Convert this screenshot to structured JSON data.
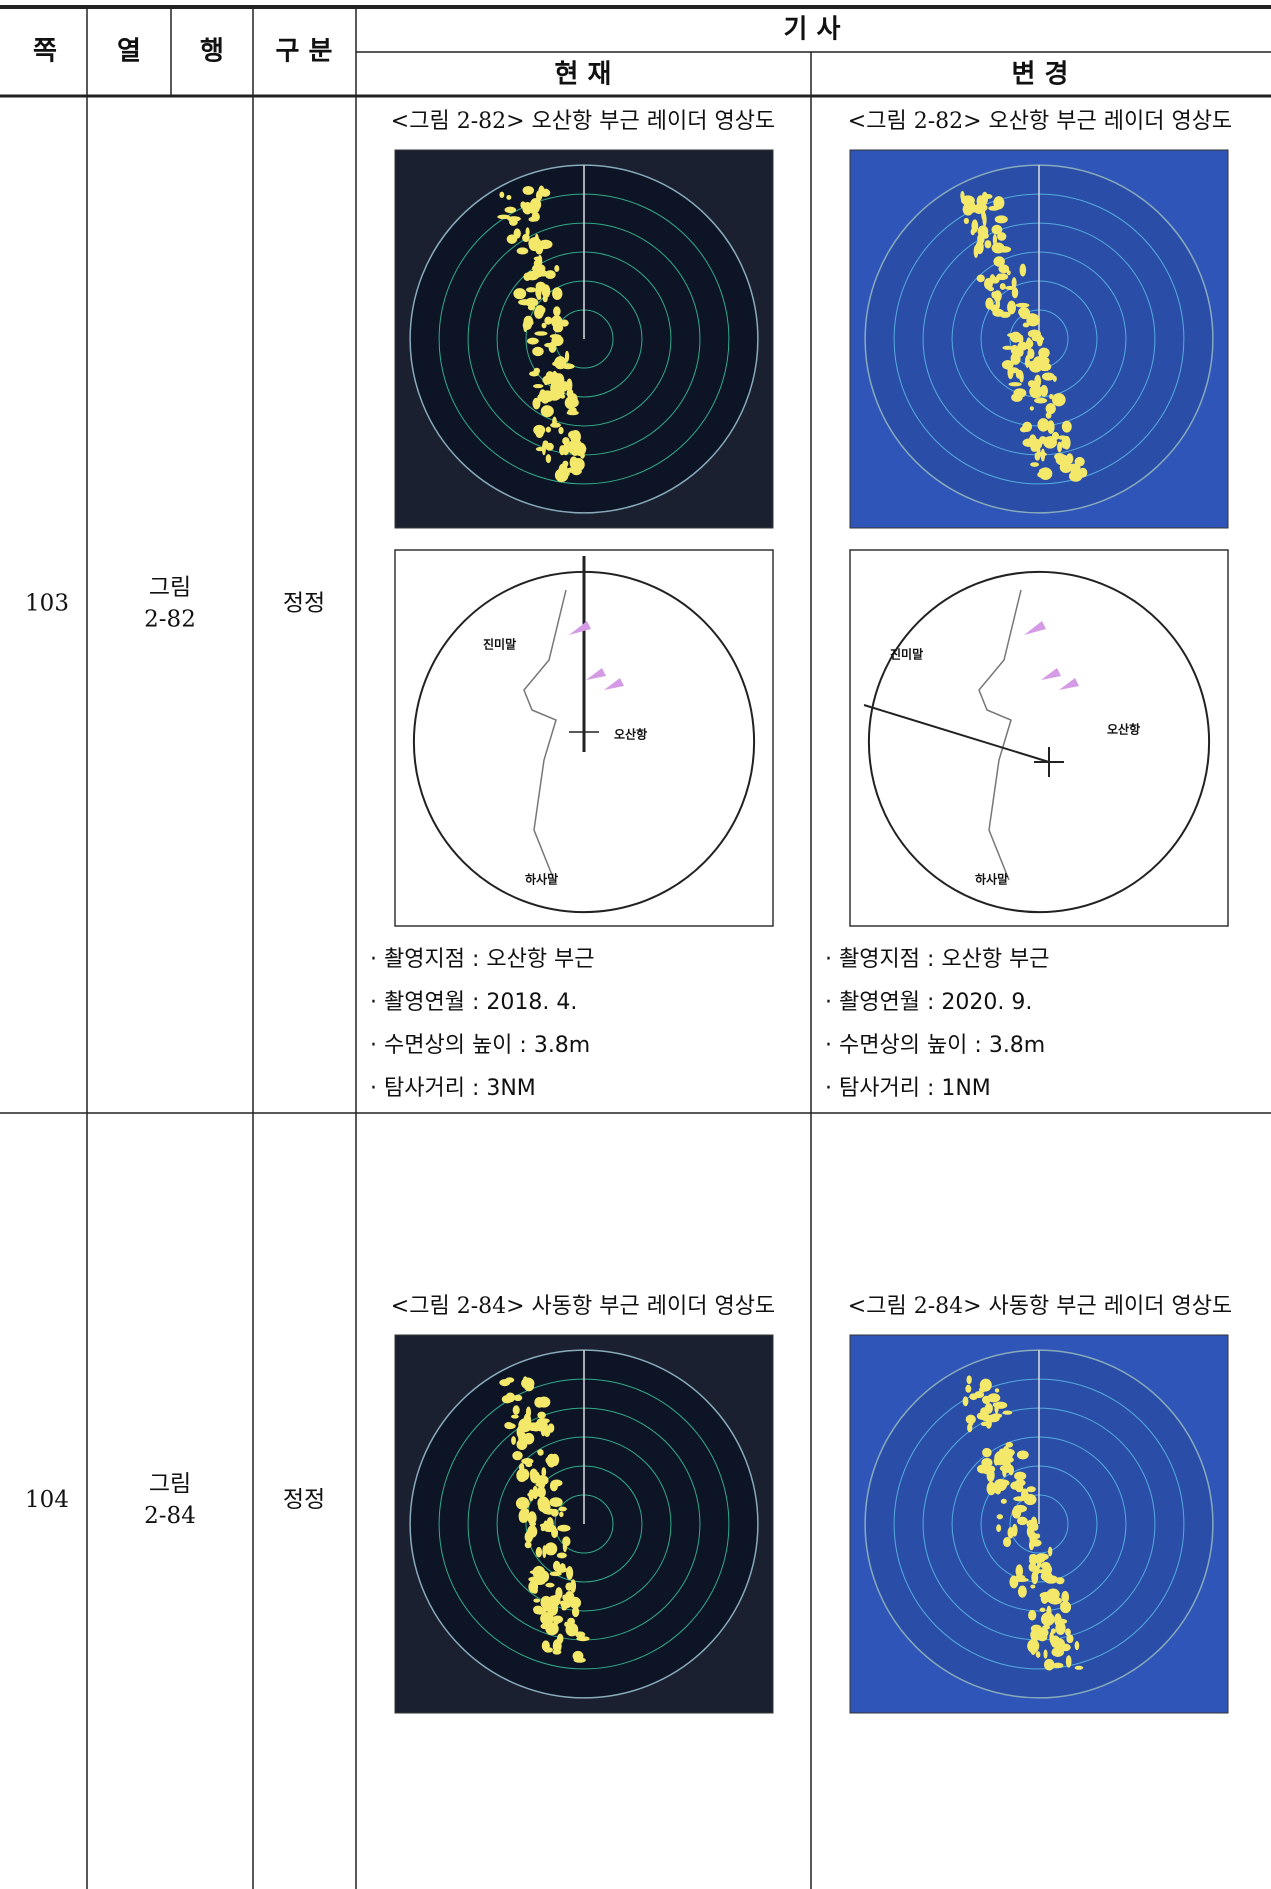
{
  "header": {
    "page": "쪽",
    "column": "열",
    "row": "행",
    "category": "구 분",
    "article": "기 사",
    "current": "현 재",
    "changed": "변 경"
  },
  "rows": [
    {
      "page": "103",
      "figure": [
        "그림",
        "2-82"
      ],
      "category": "정정",
      "current": {
        "caption": "<그림 2-82> 오산항 부근 레이더 영상도",
        "diagram_labels": [
          "진미말",
          "오산항",
          "하사말"
        ],
        "info": [
          "· 촬영지점 : 오산항 부근",
          "· 촬영연월 : 2018. 4.",
          "· 수면상의 높이 : 3.8m",
          "· 탐사거리 : 3NM"
        ]
      },
      "changed": {
        "caption": "<그림 2-82> 오산항 부근 레이더 영상도",
        "diagram_labels": [
          "진미말",
          "오산항",
          "하사말"
        ],
        "info": [
          "· 촬영지점 : 오산항 부근",
          "· 촬영연월 : 2020. 9.",
          "· 수면상의 높이 : 3.8m",
          "· 탐사거리 : 1NM"
        ]
      }
    },
    {
      "page": "104",
      "figure": [
        "그림",
        "2-84"
      ],
      "category": "정정",
      "current": {
        "caption": "<그림 2-84> 사동항 부근 레이더 영상도"
      },
      "changed": {
        "caption": "<그림 2-84> 사동항 부근 레이더 영상도"
      }
    }
  ]
}
